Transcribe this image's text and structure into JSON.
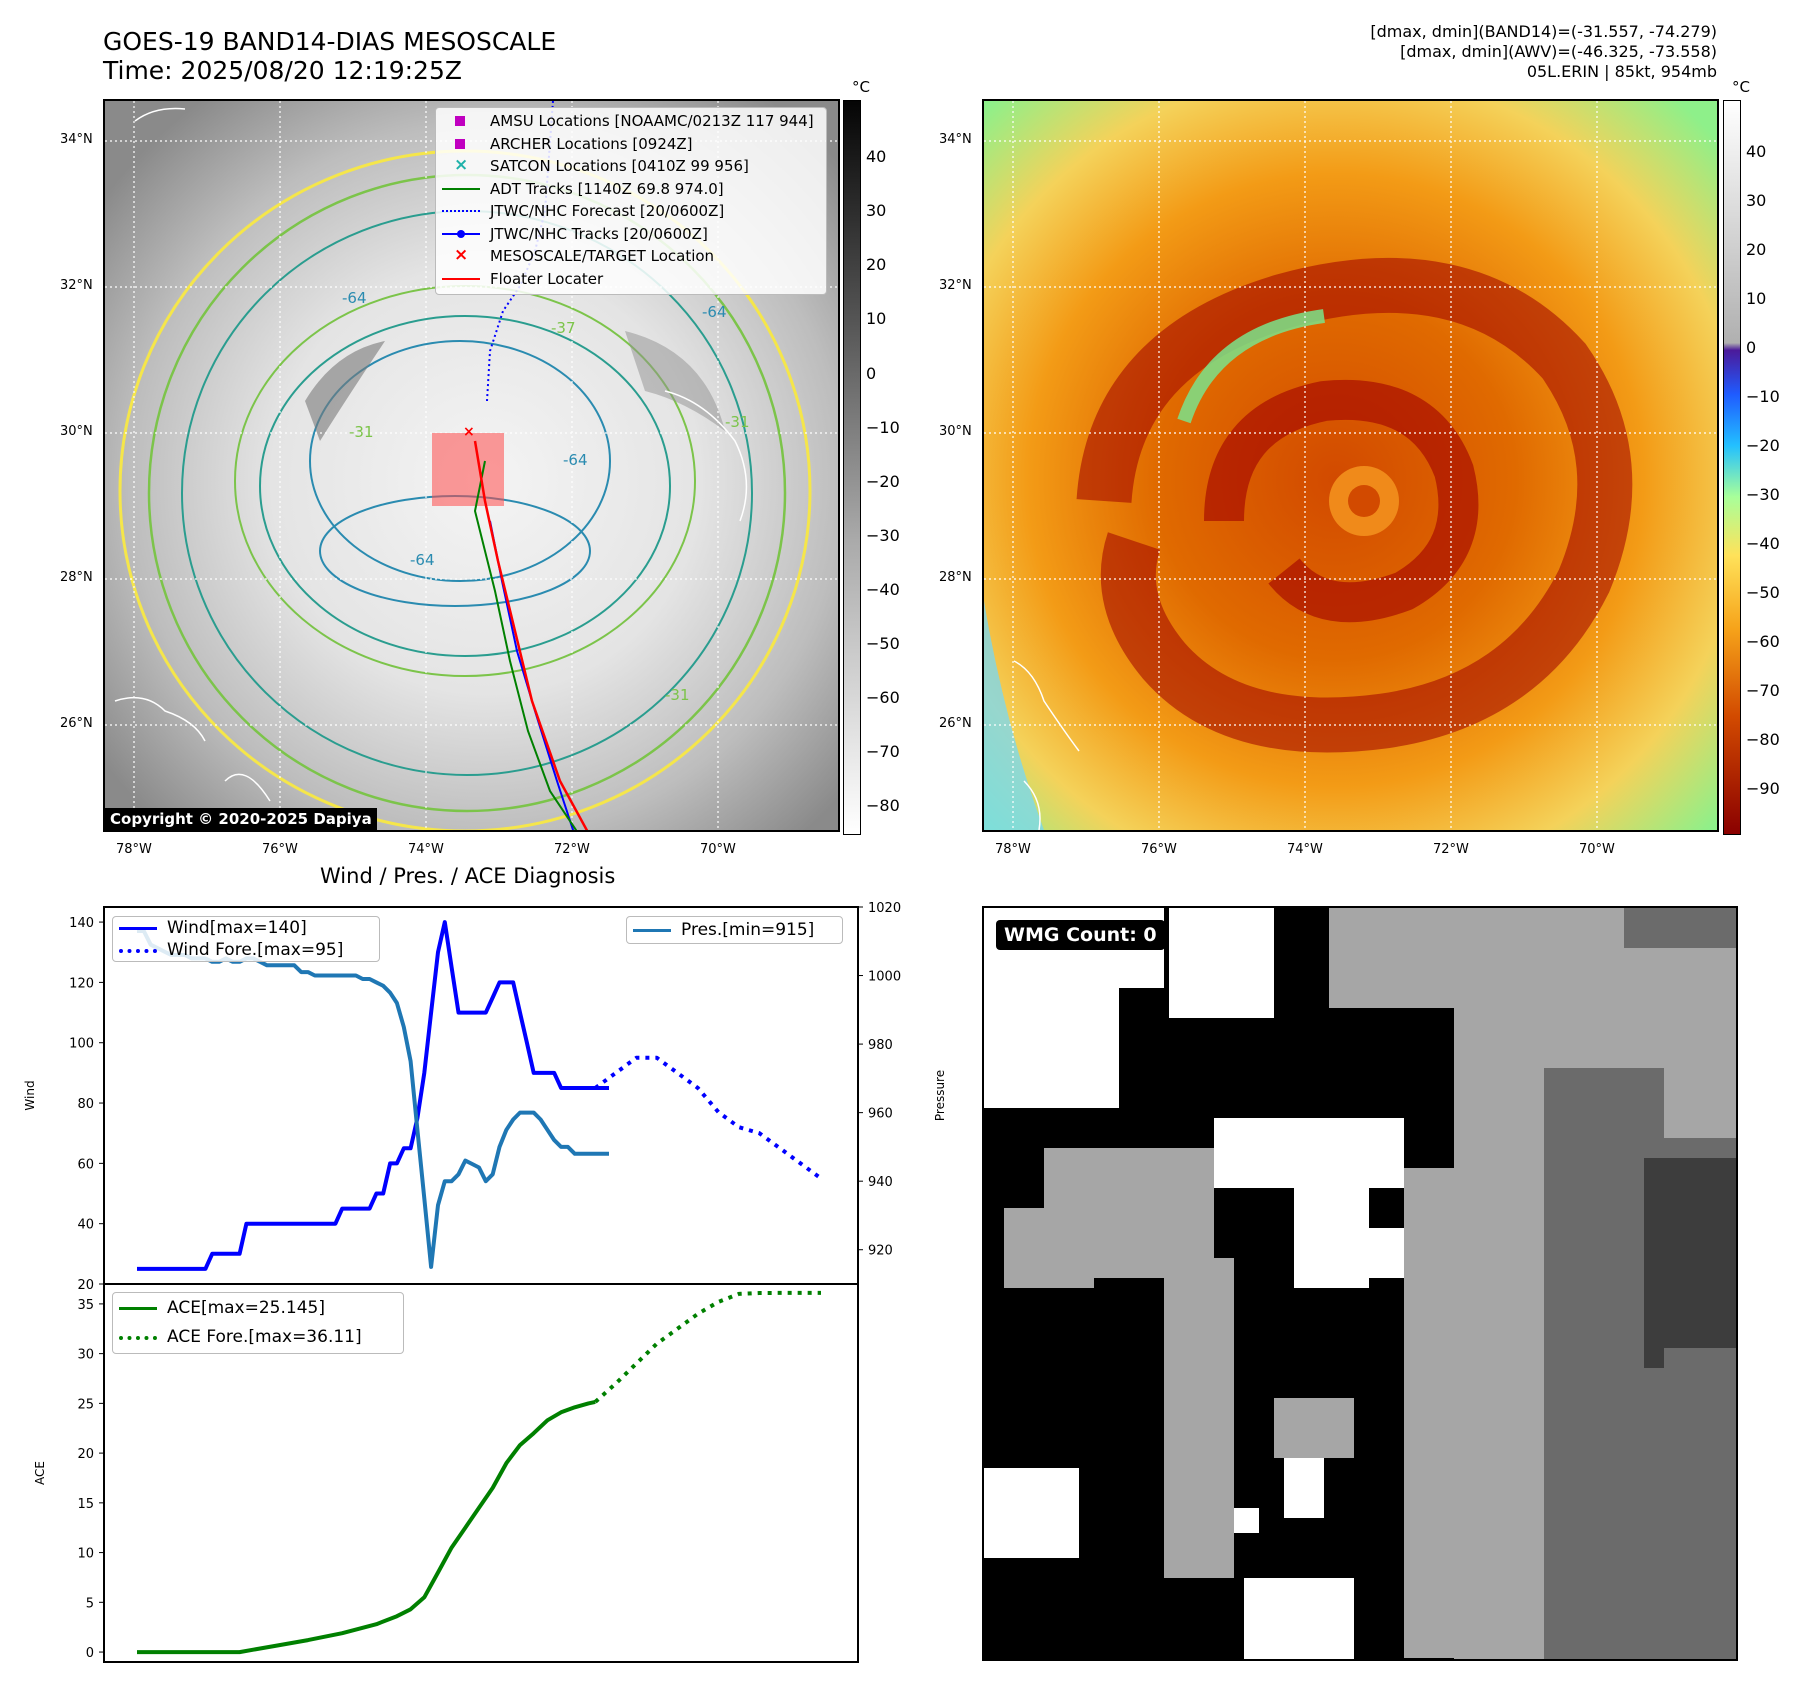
{
  "header": {
    "title_line1": "GOES-19 BAND14-DIAS MESOSCALE",
    "title_line2": "Time: 2025/08/20 12:19:25Z",
    "stats_line1": "[dmax, dmin](BAND14)=(-31.557, -74.279)",
    "stats_line2": "[dmax, dmin](AWV)=(-46.325, -73.558)",
    "stats_line3": "05L.ERIN | 85kt, 954mb"
  },
  "ir_panel": {
    "copyright": "Copyright © 2020-2025 Dapiya",
    "colorbar_unit": "°C",
    "colorbar_ticks": [
      "40",
      "30",
      "20",
      "10",
      "0",
      "−10",
      "−20",
      "−30",
      "−40",
      "−50",
      "−60",
      "−70",
      "−80"
    ],
    "lat_labels": [
      "34°N",
      "32°N",
      "30°N",
      "28°N",
      "26°N"
    ],
    "lon_labels": [
      "78°W",
      "76°W",
      "74°W",
      "72°W",
      "70°W"
    ],
    "contour_labels": [
      "-64",
      "-64",
      "-37",
      "-31",
      "-31",
      "-64",
      "-64",
      "-31"
    ],
    "legend": [
      {
        "label": "AMSU Locations [NOAAMC/0213Z 117 944]",
        "marker": "square",
        "color": "#c000c0"
      },
      {
        "label": "ARCHER Locations [0924Z]",
        "marker": "square",
        "color": "#c000c0"
      },
      {
        "label": "SATCON Locations [0410Z 99 956]",
        "marker": "x",
        "color": "#20b2aa"
      },
      {
        "label": "ADT Tracks [1140Z 69.8 974.0]",
        "marker": "line",
        "color": "#008000"
      },
      {
        "label": "JTWC/NHC Forecast [20/0600Z]",
        "marker": "dotted",
        "color": "#0000ff"
      },
      {
        "label": "JTWC/NHC Tracks [20/0600Z]",
        "marker": "line-dot",
        "color": "#0000ff"
      },
      {
        "label": "MESOSCALE/TARGET Location",
        "marker": "x",
        "color": "#ff0000"
      },
      {
        "label": "Floater Locater",
        "marker": "line",
        "color": "#ff0000"
      }
    ]
  },
  "awv_panel": {
    "colorbar_unit": "°C",
    "colorbar_ticks": [
      "40",
      "30",
      "20",
      "10",
      "0",
      "−10",
      "−20",
      "−30",
      "−40",
      "−50",
      "−60",
      "−70",
      "−80",
      "−90"
    ],
    "lat_labels": [
      "34°N",
      "32°N",
      "30°N",
      "28°N",
      "26°N"
    ],
    "lon_labels": [
      "78°W",
      "76°W",
      "74°W",
      "72°W",
      "70°W"
    ]
  },
  "wmg_panel": {
    "badge": "WMG Count: 0"
  },
  "colors": {
    "wind": "#0000ff",
    "pressure": "#1f77b4",
    "ace": "#008000",
    "floater": "#ff0000"
  },
  "chart_data": [
    {
      "type": "line",
      "title": "Wind / Pres. / ACE Diagnosis",
      "ylabel": "Wind",
      "ylim": [
        20,
        145
      ],
      "yticks": [
        "140",
        "120",
        "100",
        "80",
        "60",
        "40",
        "20"
      ],
      "x": [
        0,
        1,
        2,
        3,
        4,
        5,
        6,
        7,
        8,
        9,
        10,
        11,
        12,
        13,
        14,
        15,
        16,
        17,
        18,
        19,
        20,
        21,
        22,
        23,
        24,
        25,
        26,
        27,
        28,
        29,
        30,
        31,
        32,
        33,
        34,
        35,
        36,
        37,
        38,
        39,
        40,
        41,
        42,
        43,
        44,
        45,
        46,
        47,
        48,
        49,
        50,
        51,
        52,
        53,
        54,
        55,
        56,
        57,
        58,
        59,
        60,
        61,
        62,
        63,
        64,
        65,
        66,
        67,
        68,
        69,
        70,
        71,
        72,
        73,
        74,
        75,
        76,
        77,
        78,
        79,
        80,
        81,
        82,
        83,
        84,
        85,
        86,
        87,
        88,
        89,
        90,
        91,
        92,
        93,
        94,
        95,
        96,
        97,
        98,
        99,
        100
      ],
      "series": [
        {
          "name": "Wind[max=140]",
          "style": "solid",
          "x": [
            0,
            1,
            2,
            3,
            4,
            5,
            6,
            7,
            8,
            9,
            10,
            11,
            12,
            13,
            14,
            15,
            16,
            17,
            18,
            19,
            20,
            21,
            22,
            23,
            24,
            25,
            26,
            27,
            28,
            29,
            30,
            31,
            32,
            33,
            34,
            35,
            36,
            37,
            38,
            39,
            40,
            41,
            42,
            43,
            44,
            45,
            46,
            47,
            48,
            49,
            50,
            51,
            52,
            53,
            54,
            55,
            56,
            57,
            58,
            59,
            60,
            61,
            62,
            63,
            64,
            65,
            66,
            67,
            68,
            69
          ],
          "values": [
            25,
            25,
            25,
            25,
            25,
            25,
            25,
            25,
            25,
            25,
            25,
            30,
            30,
            30,
            30,
            30,
            40,
            40,
            40,
            40,
            40,
            40,
            40,
            40,
            40,
            40,
            40,
            40,
            40,
            40,
            45,
            45,
            45,
            45,
            45,
            50,
            50,
            60,
            60,
            65,
            65,
            75,
            90,
            110,
            130,
            140,
            125,
            110,
            110,
            110,
            110,
            110,
            115,
            120,
            120,
            120,
            110,
            100,
            90,
            90,
            90,
            90,
            85,
            85,
            85,
            85,
            85,
            85,
            85,
            85
          ]
        },
        {
          "name": "Wind Fore.[max=95]",
          "style": "dotted",
          "x": [
            67,
            70,
            73,
            76,
            79,
            82,
            85,
            88,
            91,
            94,
            97,
            100
          ],
          "values": [
            85,
            90,
            95,
            95,
            90,
            85,
            77,
            72,
            70,
            65,
            60,
            55
          ]
        }
      ]
    },
    {
      "type": "line",
      "ylabel": "Pressure",
      "ylim": [
        910,
        1020
      ],
      "yticks": [
        "1020",
        "1000",
        "980",
        "960",
        "940",
        "920"
      ],
      "series": [
        {
          "name": "Pres.[min=915]",
          "style": "solid",
          "x": [
            0,
            1,
            2,
            3,
            4,
            5,
            6,
            7,
            8,
            9,
            10,
            11,
            12,
            13,
            14,
            15,
            16,
            17,
            18,
            19,
            20,
            21,
            22,
            23,
            24,
            25,
            26,
            27,
            28,
            29,
            30,
            31,
            32,
            33,
            34,
            35,
            36,
            37,
            38,
            39,
            40,
            41,
            42,
            43,
            44,
            45,
            46,
            47,
            48,
            49,
            50,
            51,
            52,
            53,
            54,
            55,
            56,
            57,
            58,
            59,
            60,
            61,
            62,
            63,
            64,
            65,
            66,
            67,
            68,
            69
          ],
          "values": [
            1013,
            1013,
            1009,
            1008,
            1007,
            1006,
            1006,
            1006,
            1005,
            1005,
            1005,
            1004,
            1004,
            1005,
            1004,
            1004,
            1005,
            1005,
            1004,
            1003,
            1003,
            1003,
            1003,
            1003,
            1001,
            1001,
            1000,
            1000,
            1000,
            1000,
            1000,
            1000,
            1000,
            999,
            999,
            998,
            997,
            995,
            992,
            985,
            975,
            955,
            935,
            915,
            933,
            940,
            940,
            942,
            946,
            945,
            944,
            940,
            942,
            950,
            955,
            958,
            960,
            960,
            960,
            958,
            955,
            952,
            950,
            950,
            948,
            948,
            948,
            948,
            948,
            948
          ]
        }
      ]
    },
    {
      "type": "line",
      "ylabel": "ACE",
      "ylim": [
        -1,
        37
      ],
      "yticks": [
        "35",
        "30",
        "25",
        "20",
        "15",
        "10",
        "5",
        "0"
      ],
      "series": [
        {
          "name": "ACE[max=25.145]",
          "style": "solid",
          "x": [
            0,
            5,
            10,
            15,
            20,
            25,
            30,
            35,
            38,
            40,
            42,
            44,
            46,
            48,
            50,
            52,
            54,
            56,
            58,
            60,
            62,
            64,
            66,
            67
          ],
          "values": [
            0,
            0,
            0,
            0,
            0.6,
            1.2,
            1.9,
            2.8,
            3.6,
            4.3,
            5.5,
            8,
            10.5,
            12.5,
            14.5,
            16.5,
            19,
            20.8,
            22,
            23.3,
            24.1,
            24.6,
            25,
            25.145
          ]
        },
        {
          "name": "ACE Fore.[max=36.11]",
          "style": "dotted",
          "x": [
            67,
            70,
            73,
            76,
            79,
            82,
            85,
            88,
            91,
            94,
            97,
            100
          ],
          "values": [
            25.145,
            27,
            29,
            31,
            32.5,
            34,
            35.2,
            36.0,
            36.1,
            36.11,
            36.11,
            36.11
          ]
        }
      ]
    }
  ]
}
